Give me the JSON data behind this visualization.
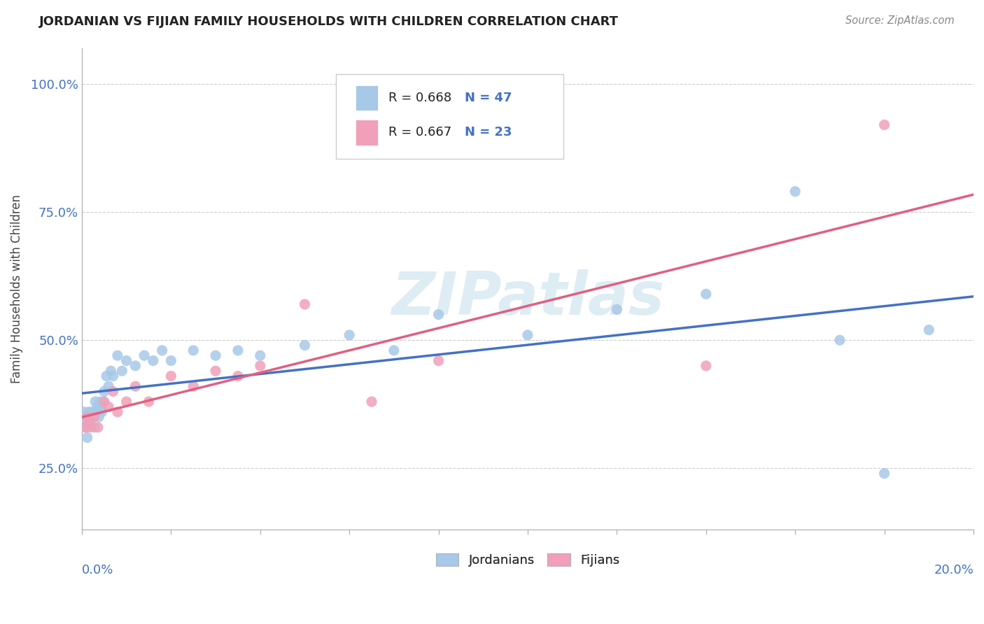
{
  "title": "JORDANIAN VS FIJIAN FAMILY HOUSEHOLDS WITH CHILDREN CORRELATION CHART",
  "source": "Source: ZipAtlas.com",
  "ylabel": "Family Households with Children",
  "xlim": [
    0.0,
    20.0
  ],
  "ylim": [
    13.0,
    107.0
  ],
  "yticks": [
    25.0,
    50.0,
    75.0,
    100.0
  ],
  "ytick_labels": [
    "25.0%",
    "50.0%",
    "75.0%",
    "100.0%"
  ],
  "blue_color": "#A8C8E8",
  "pink_color": "#F0A0B8",
  "blue_line_color": "#4472C4",
  "pink_line_color": "#E06080",
  "text_blue_color": "#4472C4",
  "background_color": "#FFFFFF",
  "grid_color": "#CCCCCC",
  "blue_x": [
    0.05,
    0.08,
    0.1,
    0.12,
    0.14,
    0.16,
    0.18,
    0.2,
    0.22,
    0.25,
    0.28,
    0.3,
    0.32,
    0.35,
    0.38,
    0.4,
    0.42,
    0.45,
    0.48,
    0.5,
    0.55,
    0.6,
    0.65,
    0.7,
    0.8,
    0.9,
    1.0,
    1.2,
    1.4,
    1.6,
    1.8,
    2.0,
    2.5,
    3.0,
    3.5,
    4.0,
    5.0,
    6.0,
    7.0,
    8.0,
    10.0,
    12.0,
    14.0,
    16.0,
    17.0,
    18.0,
    19.0
  ],
  "blue_y": [
    36,
    33,
    34,
    31,
    35,
    36,
    35,
    34,
    36,
    35,
    33,
    38,
    36,
    37,
    35,
    38,
    37,
    36,
    38,
    40,
    43,
    41,
    44,
    43,
    47,
    44,
    46,
    45,
    47,
    46,
    48,
    46,
    48,
    47,
    48,
    47,
    49,
    51,
    48,
    55,
    51,
    56,
    59,
    79,
    50,
    24,
    52
  ],
  "pink_x": [
    0.08,
    0.12,
    0.16,
    0.2,
    0.28,
    0.36,
    0.5,
    0.6,
    0.7,
    0.8,
    1.0,
    1.2,
    1.5,
    2.0,
    2.5,
    3.0,
    3.5,
    4.0,
    5.0,
    6.5,
    8.0,
    14.0,
    18.0
  ],
  "pink_y": [
    33,
    35,
    34,
    33,
    35,
    33,
    38,
    37,
    40,
    36,
    38,
    41,
    38,
    43,
    41,
    44,
    43,
    45,
    57,
    38,
    46,
    45,
    92
  ],
  "watermark_text": "ZIPatlas",
  "watermark_color": "#D0E4F0",
  "watermark_alpha": 0.7
}
